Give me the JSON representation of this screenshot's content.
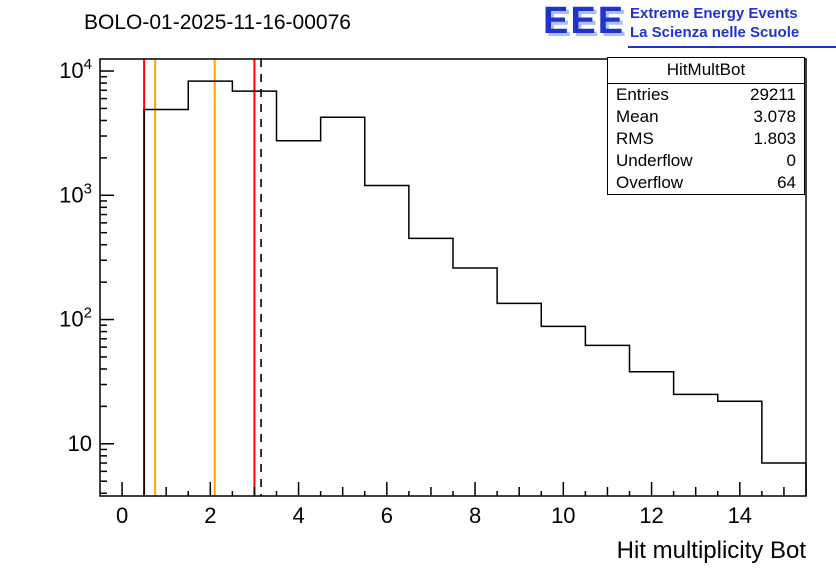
{
  "title": "BOLO-01-2025-11-16-00076",
  "logo": {
    "acronym": "EEE",
    "line1": "Extreme Energy Events",
    "line2": "La Scienza nelle Scuole",
    "color": "#2233cc",
    "shadow_color": "#aac2e8"
  },
  "stats": {
    "header": "HitMultBot",
    "rows": [
      {
        "label": "Entries",
        "value": "29211"
      },
      {
        "label": "Mean",
        "value": "3.078"
      },
      {
        "label": "RMS",
        "value": "1.803"
      },
      {
        "label": "Underflow",
        "value": "0"
      },
      {
        "label": "Overflow",
        "value": "64"
      }
    ]
  },
  "chart_data": {
    "type": "bar",
    "style": "step-histogram",
    "title": "BOLO-01-2025-11-16-00076",
    "xlabel": "Hit multiplicity Bot",
    "ylabel": "",
    "y_scale": "log",
    "grid": false,
    "x_range": [
      -0.5,
      15.5
    ],
    "y_range": [
      3.8,
      12500
    ],
    "x_major_ticks": [
      0,
      2,
      4,
      6,
      8,
      10,
      12,
      14
    ],
    "y_decade_ticks": [
      {
        "value": 10,
        "base": "10",
        "exp": ""
      },
      {
        "value": 100,
        "base": "10",
        "exp": "2"
      },
      {
        "value": 1000,
        "base": "10",
        "exp": "3"
      },
      {
        "value": 10000,
        "base": "10",
        "exp": "4"
      }
    ],
    "histogram": {
      "bin_edges": [
        0.5,
        1.5,
        2.5,
        3.5,
        4.5,
        5.5,
        6.5,
        7.5,
        8.5,
        9.5,
        10.5,
        11.5,
        12.5,
        13.5,
        14.5,
        15.5
      ],
      "counts": [
        4900,
        8300,
        6900,
        2750,
        4250,
        1200,
        450,
        260,
        135,
        88,
        62,
        38,
        25,
        22,
        7
      ],
      "line_color": "#000000"
    },
    "vlines": [
      {
        "x": 0.5,
        "color": "#ff0000",
        "style": "solid"
      },
      {
        "x": 0.75,
        "color": "#ffa500",
        "style": "solid"
      },
      {
        "x": 2.1,
        "color": "#ffa500",
        "style": "solid"
      },
      {
        "x": 3.0,
        "color": "#ff0000",
        "style": "solid"
      },
      {
        "x": 3.15,
        "color": "#000000",
        "style": "dashed"
      }
    ]
  }
}
